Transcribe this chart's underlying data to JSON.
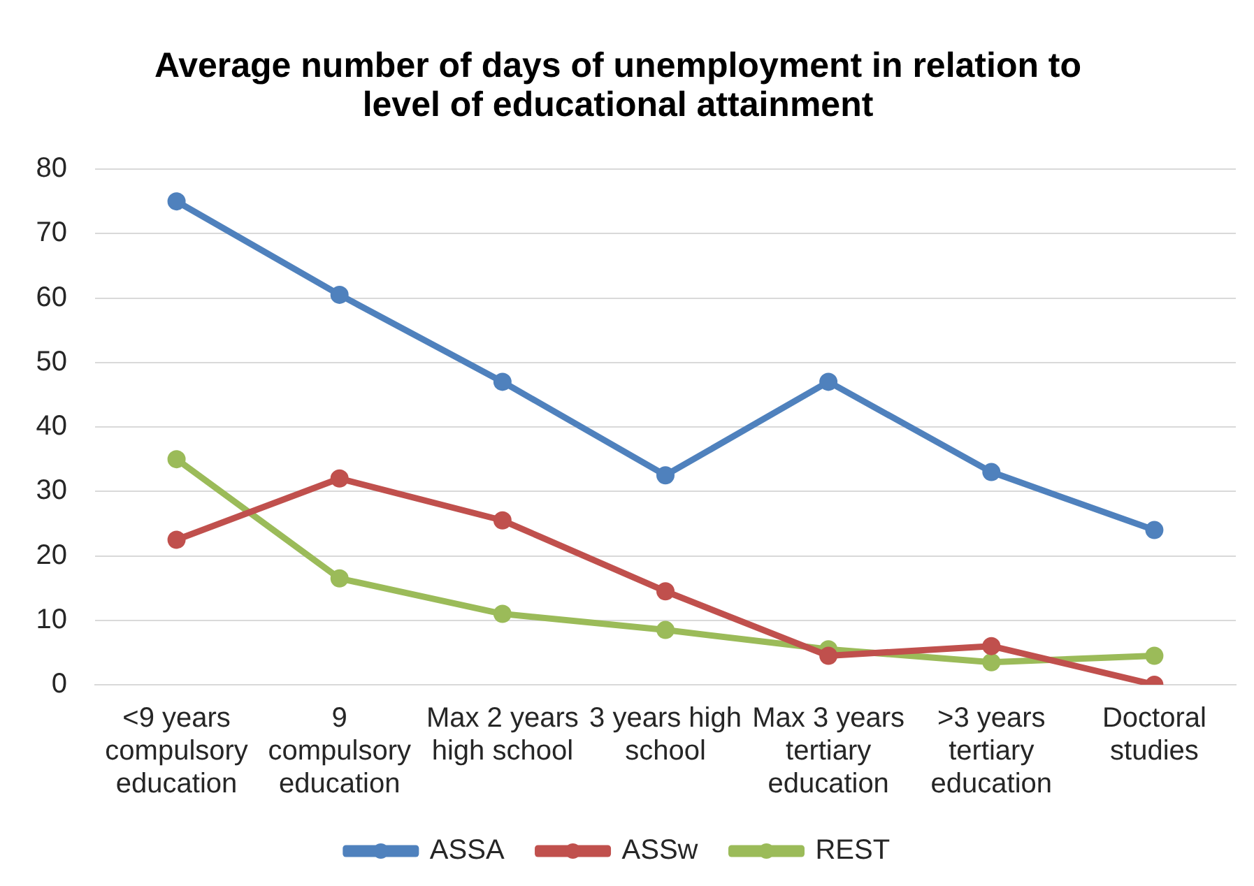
{
  "chart_data": {
    "type": "line",
    "title": "Average number of days of unemployment in relation to level of educational attainment",
    "categories": [
      "<9 years compulsory education",
      "9 compulsory education",
      "Max 2 years high school",
      "3 years high school",
      "Max 3 years tertiary education",
      ">3 years tertiary education",
      "Doctoral studies"
    ],
    "series": [
      {
        "name": "ASSA",
        "color": "#4f81bd",
        "values": [
          75,
          60.5,
          47,
          32.5,
          47,
          33,
          24
        ]
      },
      {
        "name": "ASSw",
        "color": "#c0504d",
        "values": [
          22.5,
          32,
          25.5,
          14.5,
          4.5,
          6,
          0
        ]
      },
      {
        "name": "REST",
        "color": "#9bbb59",
        "values": [
          35,
          16.5,
          11,
          8.5,
          5.5,
          3.5,
          4.5
        ]
      }
    ],
    "ylim": [
      0,
      80
    ],
    "yticks": [
      0,
      10,
      20,
      30,
      40,
      50,
      60,
      70,
      80
    ],
    "grid": "y",
    "legend": "bottom",
    "marker": "circle",
    "line_style": "solid"
  }
}
